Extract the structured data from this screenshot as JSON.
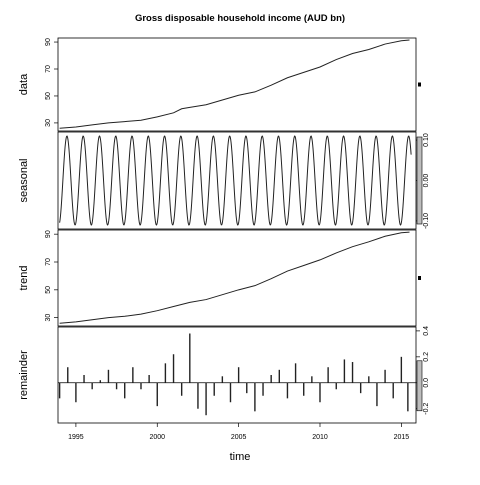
{
  "chart_data": {
    "type": "line",
    "title": "Gross disposable household income (AUD bn)",
    "xlabel": "time",
    "xlim": [
      1993.9,
      2015.9
    ],
    "x_ticks": [
      1995,
      2000,
      2005,
      2010,
      2015
    ],
    "x_tick_labels": [
      "1995",
      "2000",
      "2005",
      "2010",
      "2015"
    ],
    "panels": [
      {
        "name": "data",
        "label": "data",
        "type": "line",
        "ylim": [
          24,
          93
        ],
        "y_ticks": [
          30,
          50,
          70,
          90
        ],
        "y_tick_labels": [
          "30",
          "50",
          "70",
          "90"
        ],
        "x": [
          1994.0,
          1995.0,
          1996.0,
          1997.0,
          1998.0,
          1999.0,
          2000.0,
          2001.0,
          2001.5,
          2002.0,
          2003.0,
          2004.0,
          2005.0,
          2006.0,
          2007.0,
          2008.0,
          2009.0,
          2010.0,
          2011.0,
          2012.0,
          2013.0,
          2014.0,
          2015.0,
          2015.5
        ],
        "values": [
          26.0,
          27.0,
          28.5,
          30.0,
          31.0,
          32.0,
          34.5,
          37.5,
          40.5,
          41.5,
          43.5,
          47.0,
          50.5,
          53.0,
          58.0,
          63.5,
          67.5,
          71.5,
          77.0,
          81.5,
          84.5,
          88.5,
          91.0,
          91.5
        ]
      },
      {
        "name": "seasonal",
        "label": "seasonal",
        "type": "line",
        "ylim": [
          -0.12,
          0.12
        ],
        "y_ticks": [
          -0.1,
          0.0,
          0.1
        ],
        "y_tick_labels": [
          "-0.10",
          "0.00",
          "0.10"
        ],
        "amplitude": 0.11,
        "cycles_per_year": 1,
        "start": 1994.0,
        "end": 2015.6
      },
      {
        "name": "trend",
        "label": "trend",
        "type": "line",
        "ylim": [
          24,
          93
        ],
        "y_ticks": [
          30,
          50,
          70,
          90
        ],
        "y_tick_labels": [
          "30",
          "50",
          "70",
          "90"
        ],
        "x": [
          1994.0,
          1995.0,
          1996.0,
          1997.0,
          1998.0,
          1999.0,
          2000.0,
          2001.0,
          2002.0,
          2003.0,
          2004.0,
          2005.0,
          2006.0,
          2007.0,
          2008.0,
          2009.0,
          2010.0,
          2011.0,
          2012.0,
          2013.0,
          2014.0,
          2015.0,
          2015.5
        ],
        "values": [
          26.0,
          27.0,
          28.5,
          30.0,
          31.0,
          32.5,
          35.0,
          38.0,
          41.0,
          43.0,
          46.5,
          50.0,
          53.0,
          58.0,
          63.5,
          67.5,
          71.5,
          76.5,
          81.0,
          84.5,
          88.5,
          91.0,
          91.5
        ]
      },
      {
        "name": "remainder",
        "label": "remainder",
        "type": "bar",
        "ylim": [
          -0.31,
          0.43
        ],
        "y_ticks": [
          -0.2,
          0.0,
          0.2,
          0.4
        ],
        "y_tick_labels": [
          "-0.2",
          "0.0",
          "0.2",
          "0.4"
        ],
        "x": [
          1994.0,
          1994.5,
          1995.0,
          1995.5,
          1996.0,
          1996.5,
          1997.0,
          1997.5,
          1998.0,
          1998.5,
          1999.0,
          1999.5,
          2000.0,
          2000.5,
          2001.0,
          2001.5,
          2002.0,
          2002.5,
          2003.0,
          2003.5,
          2004.0,
          2004.5,
          2005.0,
          2005.5,
          2006.0,
          2006.5,
          2007.0,
          2007.5,
          2008.0,
          2008.5,
          2009.0,
          2009.5,
          2010.0,
          2010.5,
          2011.0,
          2011.5,
          2012.0,
          2012.5,
          2013.0,
          2013.5,
          2014.0,
          2014.5,
          2015.0,
          2015.4
        ],
        "values": [
          -0.12,
          0.12,
          -0.15,
          0.06,
          -0.05,
          0.02,
          0.1,
          -0.05,
          -0.12,
          0.12,
          -0.05,
          0.06,
          -0.18,
          0.15,
          0.22,
          -0.1,
          0.38,
          -0.2,
          -0.25,
          -0.1,
          0.05,
          -0.15,
          0.12,
          -0.08,
          -0.22,
          -0.1,
          0.06,
          0.1,
          -0.12,
          0.15,
          -0.1,
          0.05,
          -0.15,
          0.12,
          -0.05,
          0.18,
          0.16,
          -0.08,
          0.05,
          -0.18,
          0.1,
          -0.12,
          0.2,
          -0.22
        ]
      }
    ]
  }
}
